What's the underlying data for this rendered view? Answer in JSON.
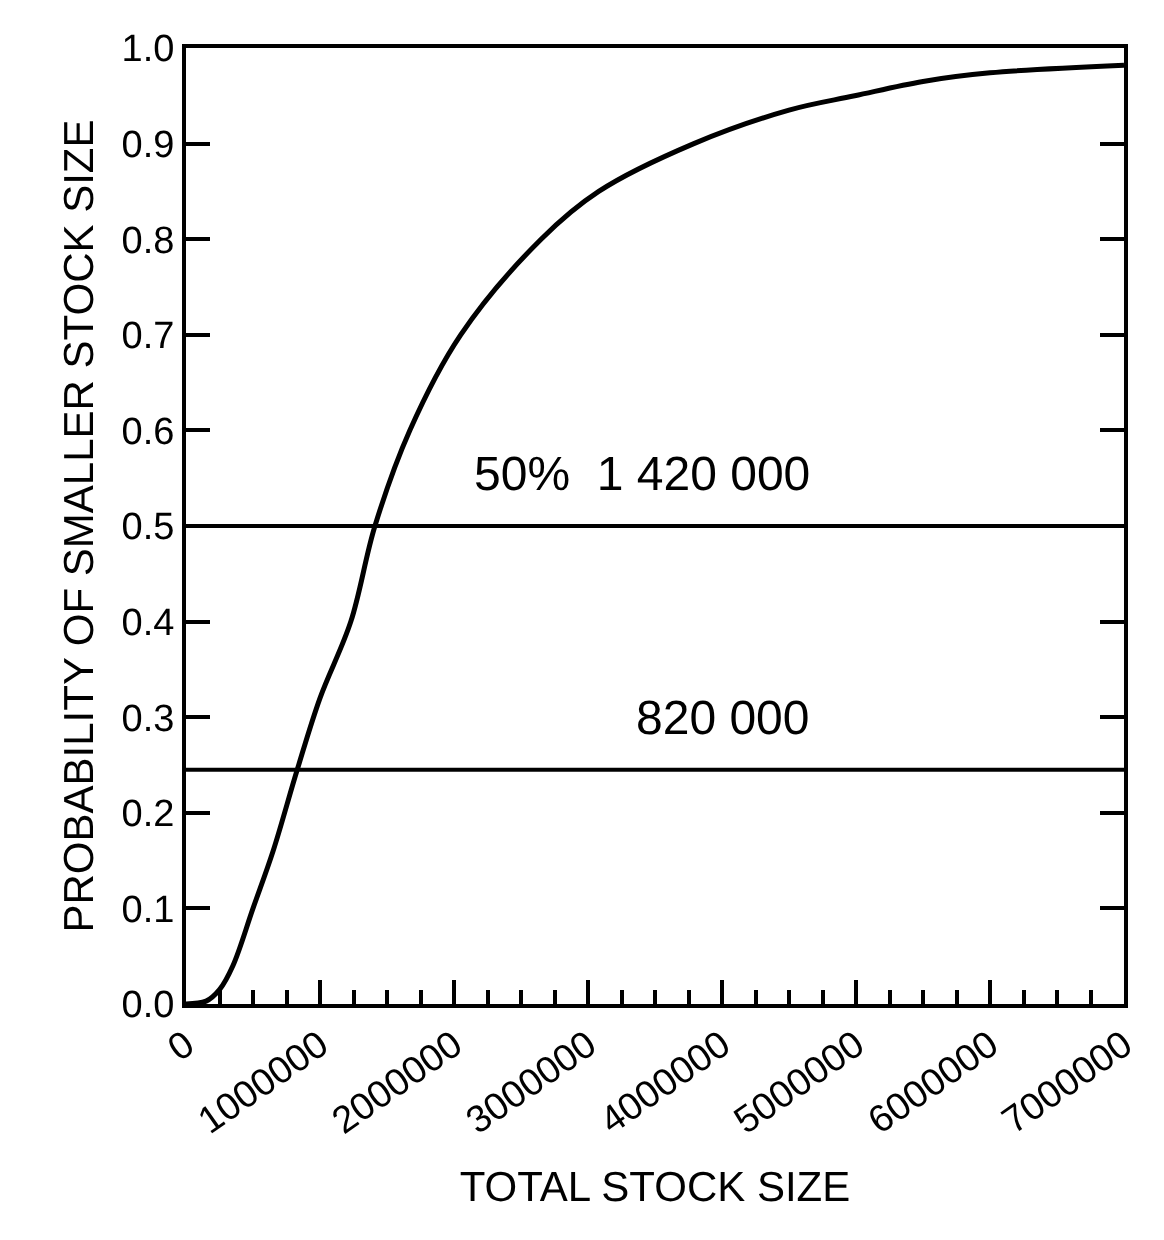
{
  "chart_data": {
    "type": "line",
    "xlabel": "TOTAL STOCK SIZE",
    "ylabel": "PROBABILITY OF SMALLER STOCK SIZE",
    "series": [
      {
        "color": "#000000",
        "x": [
          0,
          150000,
          250000,
          350000,
          500000,
          650000,
          830000,
          1000000,
          1230000,
          1410000,
          1670000,
          2050000,
          2650000,
          3080000,
          3790000,
          4500000,
          4990000,
          5500000,
          6000000,
          7000000
        ],
        "values": [
          0,
          0.003,
          0.015,
          0.04,
          0.1,
          0.16,
          0.245,
          0.32,
          0.4,
          0.5,
          0.6,
          0.7,
          0.8,
          0.85,
          0.9,
          0.935,
          0.95,
          0.965,
          0.974,
          0.982
        ]
      }
    ],
    "xlim": [
      0,
      7000000
    ],
    "xticks": [
      0,
      1000000,
      2000000,
      3000000,
      4000000,
      5000000,
      6000000,
      7000000
    ],
    "ylim": [
      0,
      1
    ],
    "yticks": [
      {
        "value": 0,
        "label": "0.0"
      },
      0.1,
      0.2,
      0.3,
      0.4,
      0.5,
      0.6,
      0.7,
      0.8,
      0.9,
      {
        "value": 1,
        "label": "1.0"
      }
    ],
    "ref_lines": [
      {
        "axis": "y",
        "value": 0.5,
        "color": "#000000"
      },
      {
        "axis": "y",
        "value": 0.245,
        "color": "#000000"
      }
    ],
    "annotations": [
      "50%  1 420 000",
      "820 000"
    ],
    "marker": "none",
    "line_style": "solid"
  }
}
